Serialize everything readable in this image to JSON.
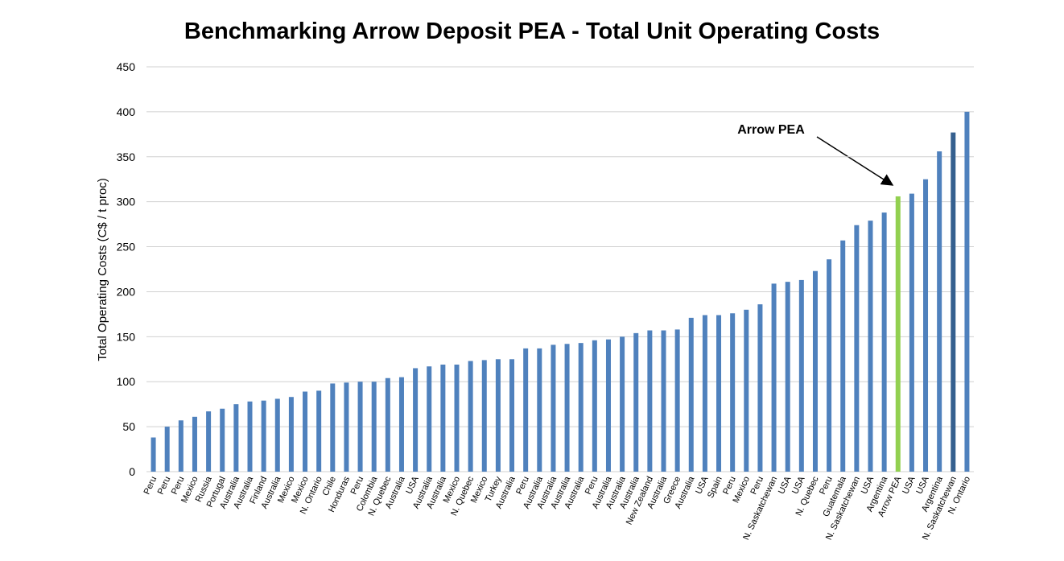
{
  "chart_data": {
    "type": "bar",
    "title": "Benchmarking Arrow Deposit PEA - Total Unit Operating Costs",
    "y_label": "Total Operating Costs (C$ / t proc)",
    "annotation": "Arrow PEA",
    "categories": [
      "Peru",
      "Peru",
      "Peru",
      "Mexico",
      "Russia",
      "Portugal",
      "Australia",
      "Australia",
      "Finland",
      "Australia",
      "Mexico",
      "Mexico",
      "N. Ontario",
      "Chile",
      "Honduras",
      "Peru",
      "Colombia",
      "N. Quebec",
      "Australia",
      "USA",
      "Australia",
      "Australia",
      "Mexico",
      "N. Quebec",
      "Mexico",
      "Turkey",
      "Australia",
      "Peru",
      "Australia",
      "Australia",
      "Australia",
      "Australia",
      "Peru",
      "Australia",
      "Australia",
      "Australia",
      "New Zealand",
      "Australia",
      "Greece",
      "Australia",
      "USA",
      "Spain",
      "Peru",
      "Mexico",
      "Peru",
      "N. Saskatchewan",
      "USA",
      "USA",
      "N. Quebec",
      "Peru",
      "Guatemala",
      "N. Saskatchewan",
      "USA",
      "Argentina",
      "Arrow PEA",
      "USA",
      "USA",
      "Argentina",
      "N. Saskatchewan",
      "N. Ontario"
    ],
    "values": [
      38,
      50,
      57,
      61,
      67,
      70,
      75,
      78,
      79,
      81,
      83,
      89,
      90,
      98,
      99,
      100,
      100,
      104,
      105,
      115,
      117,
      119,
      119,
      123,
      124,
      125,
      125,
      137,
      137,
      141,
      142,
      143,
      146,
      147,
      150,
      154,
      157,
      157,
      158,
      171,
      174,
      174,
      176,
      180,
      186,
      209,
      211,
      213,
      223,
      236,
      257,
      274,
      279,
      288,
      306,
      309,
      325,
      356,
      377,
      400
    ],
    "colors": [
      "#4f81bd",
      "#4f81bd",
      "#4f81bd",
      "#4f81bd",
      "#4f81bd",
      "#4f81bd",
      "#4f81bd",
      "#4f81bd",
      "#4f81bd",
      "#4f81bd",
      "#4f81bd",
      "#4f81bd",
      "#4f81bd",
      "#4f81bd",
      "#4f81bd",
      "#4f81bd",
      "#4f81bd",
      "#4f81bd",
      "#4f81bd",
      "#4f81bd",
      "#4f81bd",
      "#4f81bd",
      "#4f81bd",
      "#4f81bd",
      "#4f81bd",
      "#4f81bd",
      "#4f81bd",
      "#4f81bd",
      "#4f81bd",
      "#4f81bd",
      "#4f81bd",
      "#4f81bd",
      "#4f81bd",
      "#4f81bd",
      "#4f81bd",
      "#4f81bd",
      "#4f81bd",
      "#4f81bd",
      "#4f81bd",
      "#4f81bd",
      "#4f81bd",
      "#4f81bd",
      "#4f81bd",
      "#4f81bd",
      "#4f81bd",
      "#4f81bd",
      "#4f81bd",
      "#4f81bd",
      "#4f81bd",
      "#4f81bd",
      "#4f81bd",
      "#4f81bd",
      "#4f81bd",
      "#4f81bd",
      "#92d050",
      "#4f81bd",
      "#4f81bd",
      "#4f81bd",
      "#35608f",
      "#4f81bd"
    ],
    "ylim": [
      0,
      450
    ],
    "yticks": [
      0,
      50,
      100,
      150,
      200,
      250,
      300,
      350,
      400,
      450
    ],
    "grid": true
  }
}
